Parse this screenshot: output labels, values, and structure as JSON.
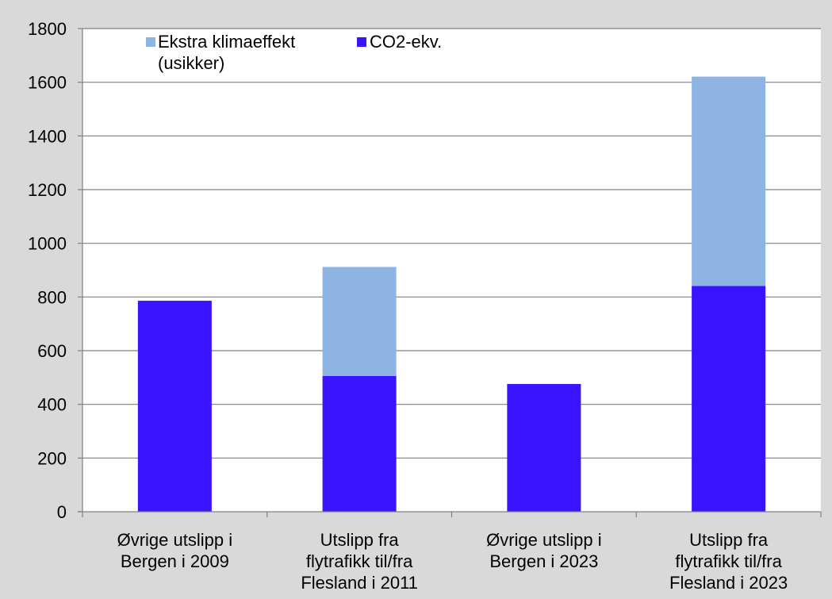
{
  "chart_data": {
    "type": "bar",
    "stacked": true,
    "categories": [
      [
        "Øvrige utslipp i",
        "Bergen i 2009"
      ],
      [
        "Utslipp fra",
        "flytrafikk til/fra",
        "Flesland i 2011"
      ],
      [
        "Øvrige utslipp i",
        "Bergen i 2023"
      ],
      [
        "Utslipp fra",
        "flytrafikk til/fra",
        "Flesland i 2023"
      ]
    ],
    "series": [
      {
        "name": "CO2-ekv.",
        "color": "#3a13ff",
        "values": [
          786,
          506,
          476,
          841
        ]
      },
      {
        "name": "Ekstra klimaeffekt (usikker)",
        "color": "#8eb4e3",
        "values": [
          0,
          406,
          0,
          780
        ]
      }
    ],
    "ylim": [
      0,
      1800
    ],
    "yticks": [
      "0",
      "200",
      "400",
      "600",
      "800",
      "1000",
      "1200",
      "1400",
      "1600",
      "1800"
    ],
    "grid": true,
    "legend": {
      "position": "top-left",
      "items": [
        {
          "lines": [
            "Ekstra klimaeffekt",
            "(usikker)"
          ],
          "color": "#8eb4e3"
        },
        {
          "lines": [
            "CO2-ekv."
          ],
          "color": "#3a13ff"
        }
      ]
    },
    "colors": {
      "background": "#d9d9d9",
      "plot_area": "#ffffff",
      "grid": "#808080"
    }
  }
}
